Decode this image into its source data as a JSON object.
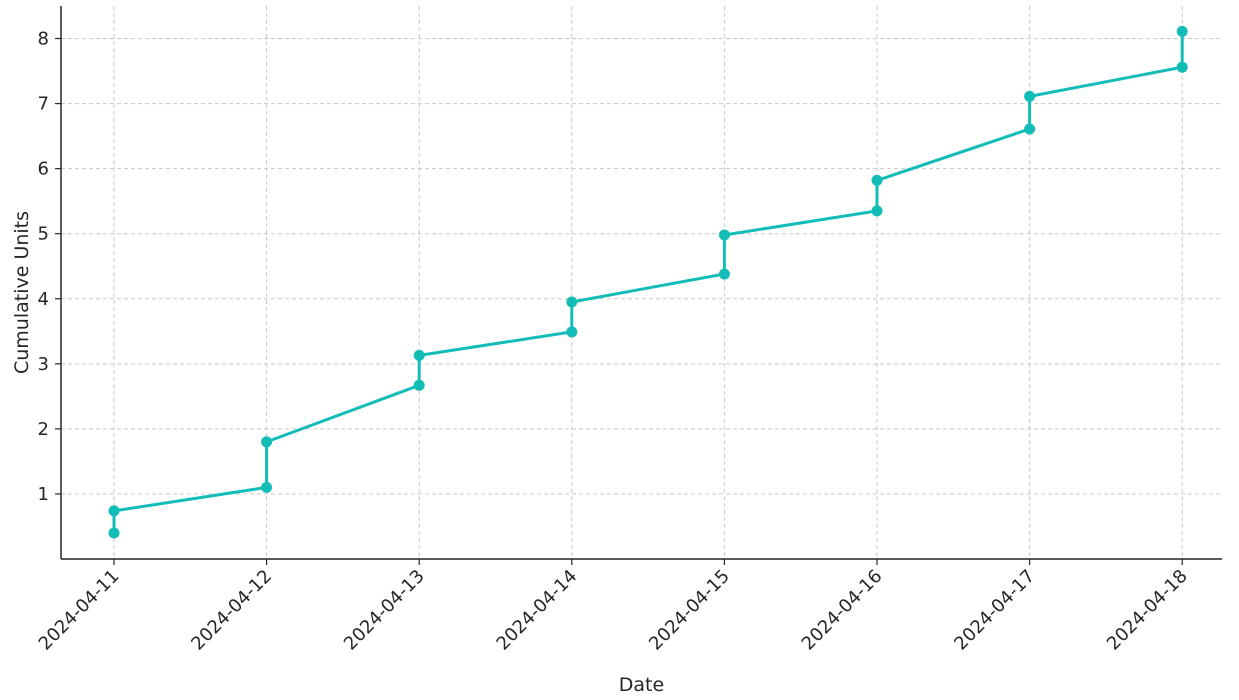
{
  "chart_data": {
    "type": "line",
    "title": "",
    "xlabel": "Date",
    "ylabel": "Cumulative Units",
    "x_tick_labels": [
      "2024-04-11",
      "2024-04-12",
      "2024-04-13",
      "2024-04-14",
      "2024-04-15",
      "2024-04-16",
      "2024-04-17",
      "2024-04-18"
    ],
    "y_ticks": [
      1,
      2,
      3,
      4,
      5,
      6,
      7,
      8
    ],
    "ylim": [
      0.0,
      8.5
    ],
    "grid": true,
    "legend": "none",
    "series": [
      {
        "color": "#13bdb7",
        "points": [
          {
            "x": "2024-04-11",
            "y": 0.4
          },
          {
            "x": "2024-04-11",
            "y": 0.74
          },
          {
            "x": "2024-04-12",
            "y": 1.1
          },
          {
            "x": "2024-04-12",
            "y": 1.8
          },
          {
            "x": "2024-04-13",
            "y": 2.67
          },
          {
            "x": "2024-04-13",
            "y": 3.13
          },
          {
            "x": "2024-04-14",
            "y": 3.49
          },
          {
            "x": "2024-04-14",
            "y": 3.95
          },
          {
            "x": "2024-04-15",
            "y": 4.38
          },
          {
            "x": "2024-04-15",
            "y": 4.98
          },
          {
            "x": "2024-04-16",
            "y": 5.35
          },
          {
            "x": "2024-04-16",
            "y": 5.82
          },
          {
            "x": "2024-04-17",
            "y": 6.61
          },
          {
            "x": "2024-04-17",
            "y": 7.11
          },
          {
            "x": "2024-04-18",
            "y": 7.56
          },
          {
            "x": "2024-04-18",
            "y": 8.11
          }
        ]
      }
    ]
  }
}
